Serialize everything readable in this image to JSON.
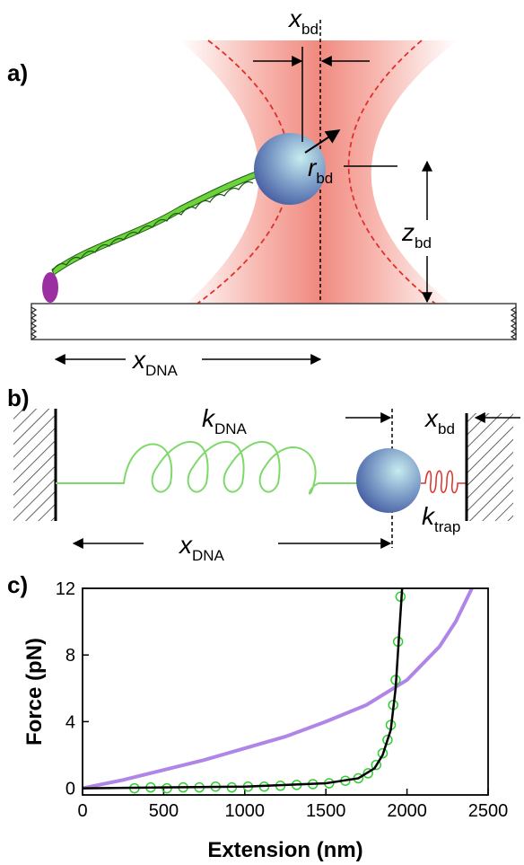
{
  "panels": {
    "a": {
      "label": "a)",
      "x_bd": {
        "symbol": "x",
        "sub": "bd"
      },
      "r_bd": {
        "symbol": "r",
        "sub": "bd"
      },
      "z_bd": {
        "symbol": "z",
        "sub": "bd"
      },
      "x_DNA": {
        "symbol": "x",
        "sub": "DNA"
      }
    },
    "b": {
      "label": "b)",
      "k_DNA": {
        "symbol": "k",
        "sub": "DNA"
      },
      "x_bd": {
        "symbol": "x",
        "sub": "bd"
      },
      "k_trap": {
        "symbol": "k",
        "sub": "trap"
      },
      "x_DNA": {
        "symbol": "x",
        "sub": "DNA"
      }
    },
    "c": {
      "label": "c)"
    }
  },
  "chart_data": {
    "type": "line",
    "x_label": "Extension (nm)",
    "y_label": "Force (pN)",
    "xlim": [
      0,
      2500
    ],
    "ylim": [
      -0.4,
      12
    ],
    "xticks": [
      0,
      500,
      1000,
      1500,
      2000,
      2500
    ],
    "yticks": [
      0,
      4,
      8,
      12
    ],
    "series": [
      {
        "color": "#b085e8",
        "marker": "none",
        "x": [
          0,
          250,
          500,
          750,
          1000,
          1250,
          1500,
          1750,
          2000,
          2200,
          2300,
          2400
        ],
        "values": [
          0,
          0.5,
          1.1,
          1.7,
          2.4,
          3.1,
          4.0,
          5.0,
          6.5,
          8.5,
          10,
          12
        ]
      },
      {
        "color": "#33cc33",
        "marker": "circle",
        "x": [
          320,
          420,
          520,
          620,
          720,
          820,
          920,
          1020,
          1120,
          1220,
          1320,
          1420,
          1520,
          1620,
          1700,
          1760,
          1810,
          1850,
          1880,
          1900,
          1915,
          1930,
          1945,
          1960
        ],
        "values": [
          0,
          0.05,
          0,
          0.05,
          0.05,
          0.1,
          0.05,
          0.1,
          0.1,
          0.15,
          0.2,
          0.25,
          0.3,
          0.45,
          0.6,
          0.9,
          1.4,
          2.1,
          2.9,
          3.8,
          5.0,
          6.5,
          8.8,
          11.5
        ]
      },
      {
        "color": "#000000",
        "marker": "none",
        "x": [
          0,
          500,
          1000,
          1500,
          1700,
          1800,
          1850,
          1900,
          1930,
          1950,
          1970
        ],
        "values": [
          0,
          0.05,
          0.1,
          0.3,
          0.6,
          1.2,
          2,
          3.5,
          6,
          9,
          12
        ]
      }
    ]
  }
}
